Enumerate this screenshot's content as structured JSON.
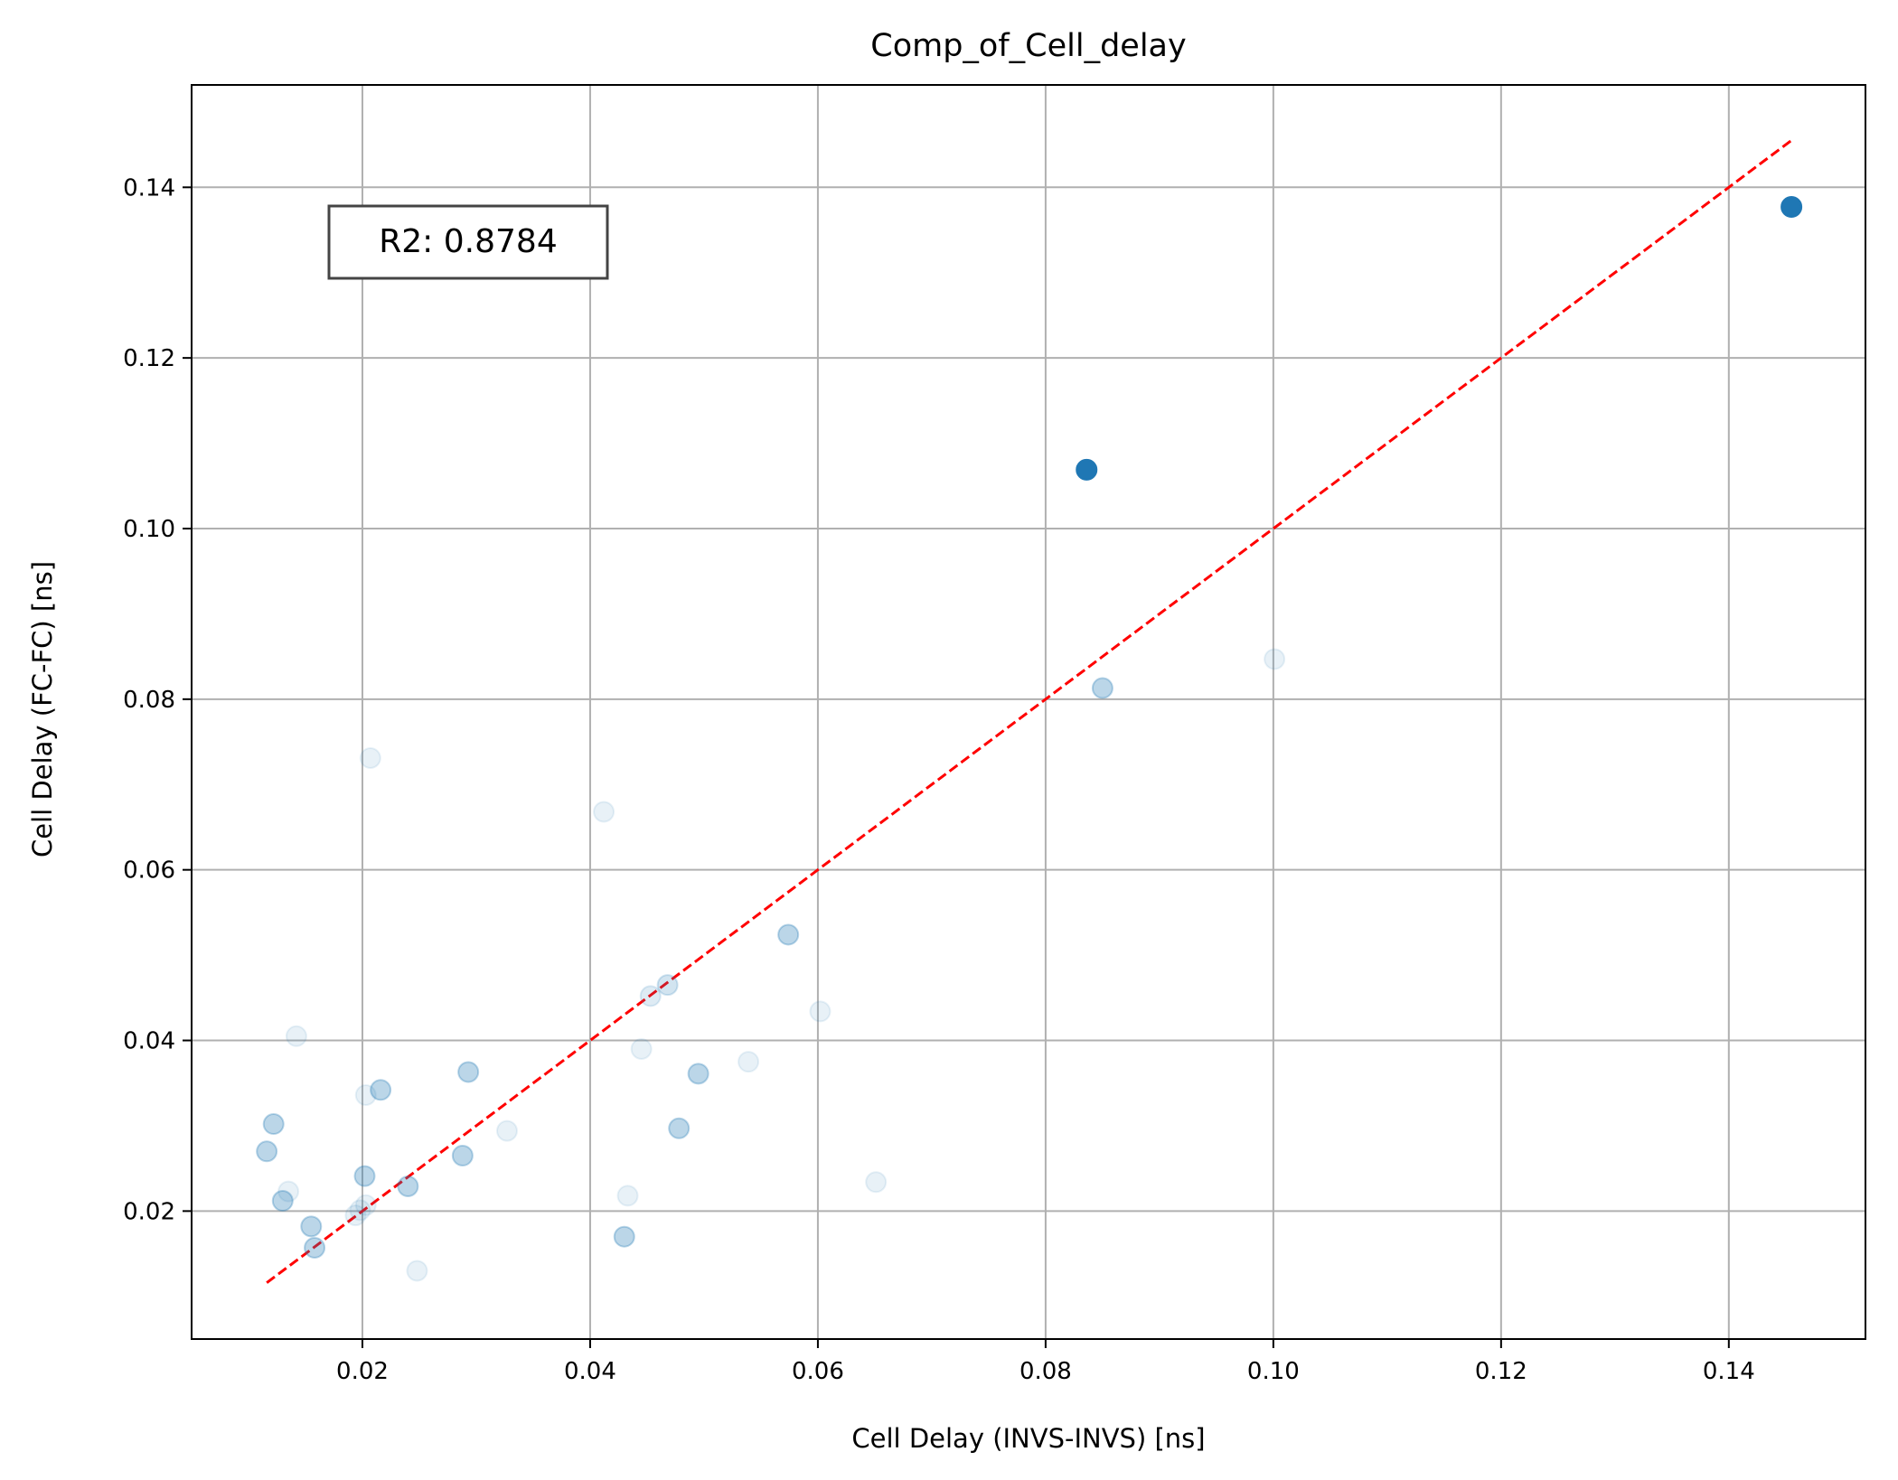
{
  "chart_data": {
    "type": "scatter",
    "title": "Comp_of_Cell_delay",
    "xlabel": "Cell Delay (INVS-INVS) [ns]",
    "ylabel": "Cell Delay (FC-FC) [ns]",
    "xlim": [
      0.005,
      0.152
    ],
    "ylim": [
      0.005,
      0.152
    ],
    "xticks": [
      "0.02",
      "0.04",
      "0.06",
      "0.08",
      "0.10",
      "0.12",
      "0.14"
    ],
    "yticks": [
      "0.02",
      "0.04",
      "0.06",
      "0.08",
      "0.10",
      "0.12",
      "0.14"
    ],
    "grid": true,
    "annotation": "R2: 0.8784",
    "marker_color": "#1f77b4",
    "fit_line_color": "#ff0000",
    "fit_line": {
      "x": [
        0.0116,
        0.1455
      ],
      "y": [
        0.0116,
        0.1455
      ],
      "style": "dashed"
    },
    "points": [
      {
        "x": 0.1455,
        "y": 0.1377,
        "alpha": 1.0
      },
      {
        "x": 0.0836,
        "y": 0.1069,
        "alpha": 1.0
      },
      {
        "x": 0.1001,
        "y": 0.0847,
        "alpha": 0.1
      },
      {
        "x": 0.085,
        "y": 0.0813,
        "alpha": 0.3
      },
      {
        "x": 0.0207,
        "y": 0.0731,
        "alpha": 0.1
      },
      {
        "x": 0.0412,
        "y": 0.0668,
        "alpha": 0.1
      },
      {
        "x": 0.0574,
        "y": 0.0524,
        "alpha": 0.3
      },
      {
        "x": 0.0468,
        "y": 0.0465,
        "alpha": 0.2
      },
      {
        "x": 0.0453,
        "y": 0.0452,
        "alpha": 0.15
      },
      {
        "x": 0.0602,
        "y": 0.0434,
        "alpha": 0.1
      },
      {
        "x": 0.0142,
        "y": 0.0405,
        "alpha": 0.1
      },
      {
        "x": 0.0445,
        "y": 0.039,
        "alpha": 0.1
      },
      {
        "x": 0.0539,
        "y": 0.0375,
        "alpha": 0.1
      },
      {
        "x": 0.0293,
        "y": 0.0363,
        "alpha": 0.3
      },
      {
        "x": 0.0495,
        "y": 0.0361,
        "alpha": 0.3
      },
      {
        "x": 0.0216,
        "y": 0.0342,
        "alpha": 0.3
      },
      {
        "x": 0.0203,
        "y": 0.0336,
        "alpha": 0.1
      },
      {
        "x": 0.0122,
        "y": 0.0302,
        "alpha": 0.3
      },
      {
        "x": 0.0478,
        "y": 0.0297,
        "alpha": 0.3
      },
      {
        "x": 0.0327,
        "y": 0.0294,
        "alpha": 0.1
      },
      {
        "x": 0.0116,
        "y": 0.027,
        "alpha": 0.3
      },
      {
        "x": 0.0288,
        "y": 0.0265,
        "alpha": 0.3
      },
      {
        "x": 0.0202,
        "y": 0.0241,
        "alpha": 0.3
      },
      {
        "x": 0.0651,
        "y": 0.0234,
        "alpha": 0.1
      },
      {
        "x": 0.024,
        "y": 0.0229,
        "alpha": 0.3
      },
      {
        "x": 0.0135,
        "y": 0.0223,
        "alpha": 0.1
      },
      {
        "x": 0.0433,
        "y": 0.0218,
        "alpha": 0.1
      },
      {
        "x": 0.013,
        "y": 0.0212,
        "alpha": 0.3
      },
      {
        "x": 0.0203,
        "y": 0.0207,
        "alpha": 0.1
      },
      {
        "x": 0.0198,
        "y": 0.0201,
        "alpha": 0.1
      },
      {
        "x": 0.0194,
        "y": 0.0195,
        "alpha": 0.1
      },
      {
        "x": 0.0155,
        "y": 0.0182,
        "alpha": 0.3
      },
      {
        "x": 0.043,
        "y": 0.017,
        "alpha": 0.3
      },
      {
        "x": 0.0158,
        "y": 0.0157,
        "alpha": 0.3
      },
      {
        "x": 0.0248,
        "y": 0.013,
        "alpha": 0.1
      }
    ]
  }
}
